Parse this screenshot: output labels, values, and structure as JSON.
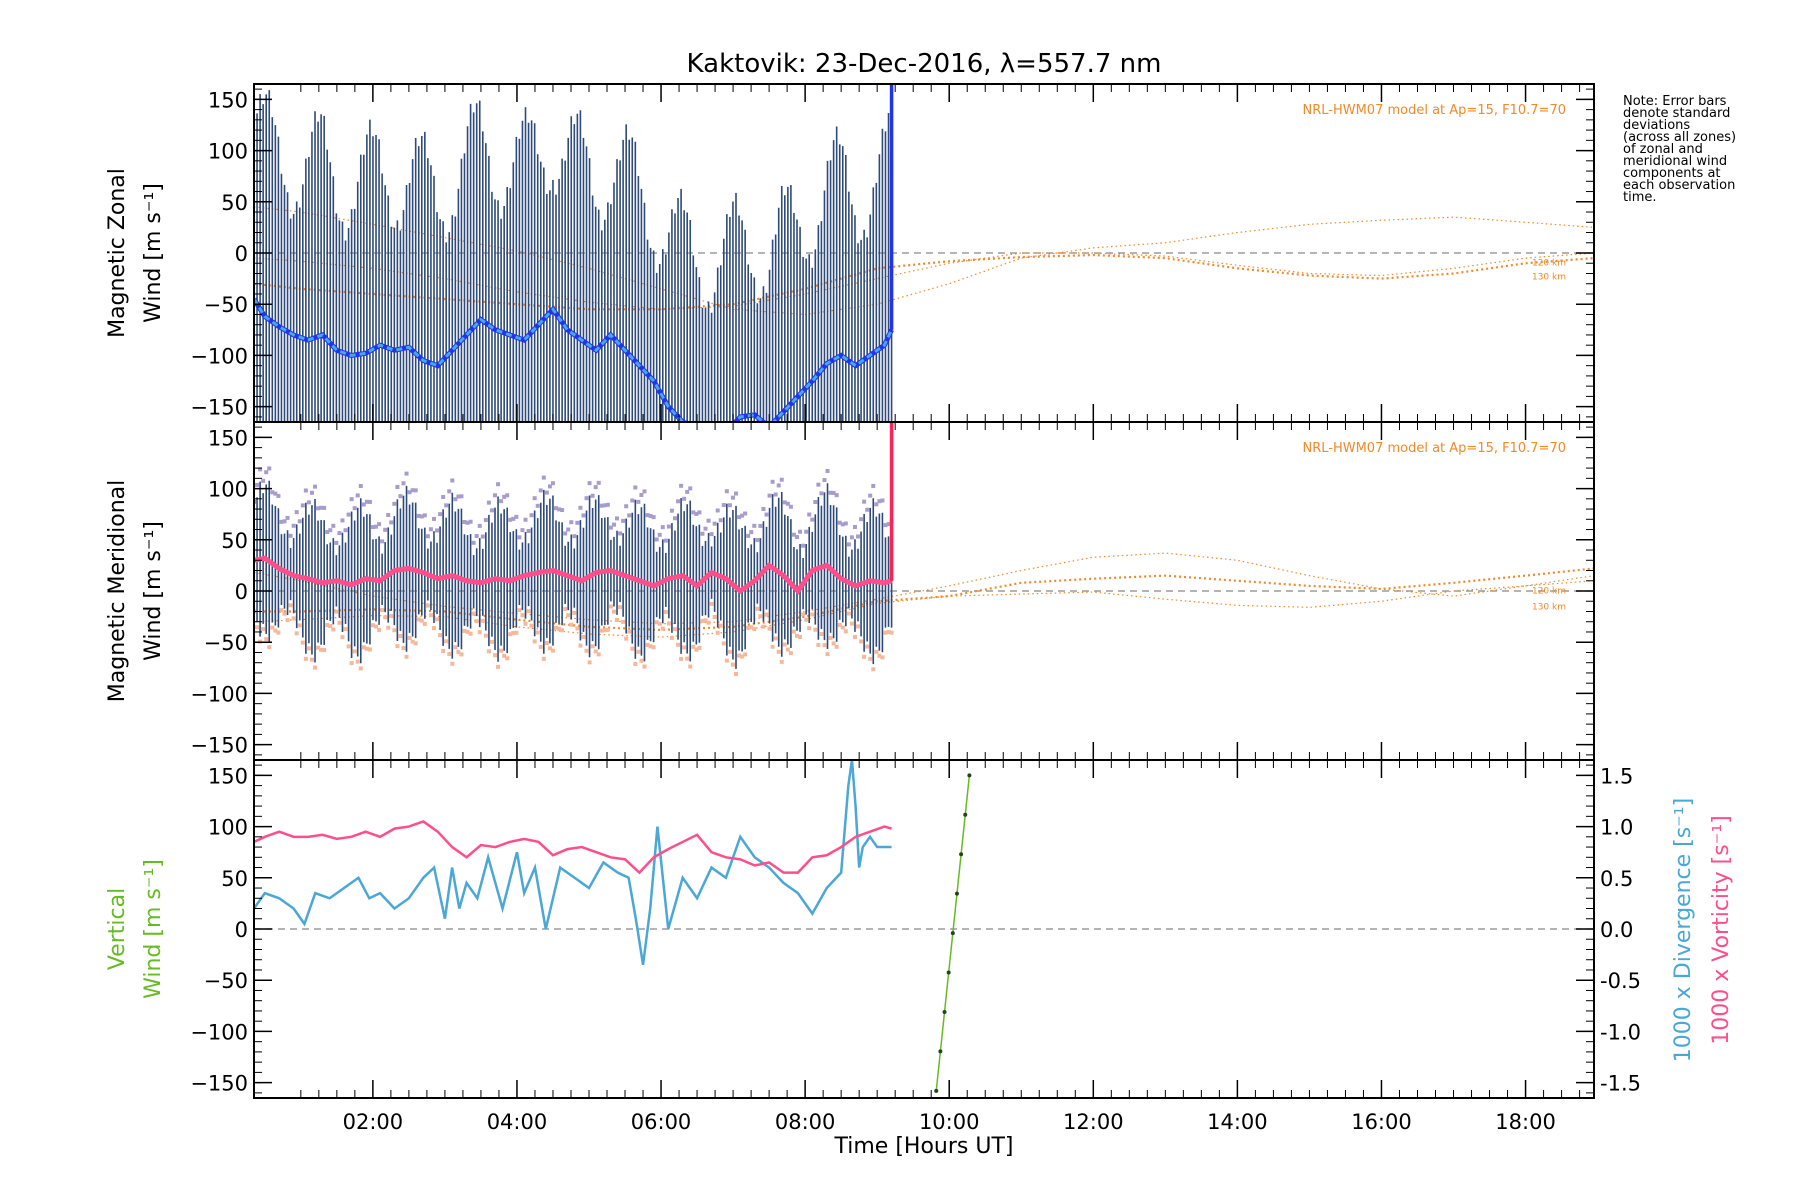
{
  "title": "Kaktovik: 23-Dec-2016, λ=557.7 nm",
  "note_lines": [
    "Note: Error bars",
    "denote standard",
    "deviations",
    "(across all zones)",
    "of zonal and",
    "meridional wind",
    "components at",
    "each observation",
    "time."
  ],
  "colors": {
    "zonal": "#2233ee",
    "zonal_light": "#4aa7e6",
    "meridional": "#ff2255",
    "meridional_mean": "#ff4f8a",
    "errorbar": "#2d4a7a",
    "model": "#f08a2a",
    "vertical": "#66bb22",
    "divergence": "#4aa7d6",
    "vorticity": "#ff4f8a",
    "scatter_purple": "#a89ccc",
    "scatter_peach": "#f7b89a",
    "scatter_yellow": "#eeeeaa",
    "zero_line": "#888888"
  },
  "chart_data": [
    {
      "type": "line",
      "panel": "zonal",
      "ylabel_lines": [
        "Magnetic Zonal",
        "Wind [m s⁻¹]"
      ],
      "ylim": [
        -165,
        165
      ],
      "yticks": [
        -150,
        -100,
        -50,
        0,
        50,
        100,
        150
      ],
      "xlim": [
        0.35,
        18.95
      ],
      "model_label": "NRL-HWM07 model at Ap=15, F10.7=70",
      "model_km_labels": [
        "120 km",
        "130 km"
      ],
      "series": [
        {
          "name": "",
          "x": [
            0.35,
            0.5,
            0.7,
            0.9,
            1.1,
            1.3,
            1.5,
            1.7,
            1.9,
            2.1,
            2.3,
            2.5,
            2.7,
            2.9,
            3.1,
            3.3,
            3.5,
            3.7,
            3.9,
            4.1,
            4.3,
            4.5,
            4.7,
            4.9,
            5.1,
            5.3,
            5.5,
            5.7,
            5.9,
            6.1,
            6.3,
            6.5,
            6.7,
            6.9,
            7.1,
            7.3,
            7.5,
            7.7,
            7.9,
            8.1,
            8.3,
            8.5,
            8.7,
            8.9,
            9.1,
            9.2
          ],
          "y": [
            -45,
            -62,
            -72,
            -80,
            -85,
            -80,
            -95,
            -100,
            -98,
            -90,
            -95,
            -92,
            -105,
            -110,
            -95,
            -80,
            -65,
            -75,
            -80,
            -85,
            -70,
            -55,
            -75,
            -85,
            -95,
            -80,
            -95,
            -110,
            -125,
            -150,
            -165,
            -170,
            -175,
            -175,
            -160,
            -158,
            -170,
            -155,
            -140,
            -125,
            -108,
            -100,
            -110,
            -100,
            -90,
            -75
          ]
        }
      ],
      "model_curves_x": [
        0.35,
        1,
        2,
        3,
        4,
        5,
        6,
        7,
        8,
        9,
        10,
        11,
        12,
        13,
        14,
        15,
        16,
        17,
        18,
        18.95
      ],
      "model_curves": [
        [
          -5,
          -8,
          -15,
          -25,
          -38,
          -48,
          -55,
          -52,
          -40,
          -25,
          -10,
          0,
          0,
          -3,
          -12,
          -20,
          -22,
          -15,
          -5,
          0
        ],
        [
          45,
          40,
          28,
          15,
          2,
          -15,
          -35,
          -55,
          -60,
          -50,
          -30,
          -5,
          5,
          10,
          20,
          28,
          32,
          35,
          30,
          25
        ],
        [
          -30,
          -35,
          -40,
          -45,
          -50,
          -55,
          -55,
          -50,
          -35,
          -15,
          -8,
          -4,
          -2,
          -5,
          -15,
          -22,
          -25,
          -20,
          -10,
          -5
        ]
      ]
    },
    {
      "type": "line",
      "panel": "meridional",
      "ylabel_lines": [
        "Magnetic Meridional",
        "Wind [m s⁻¹]"
      ],
      "ylim": [
        -165,
        165
      ],
      "yticks": [
        -150,
        -100,
        -50,
        0,
        50,
        100,
        150
      ],
      "xlim": [
        0.35,
        18.95
      ],
      "model_label": "NRL-HWM07 model at Ap=15, F10.7=70",
      "model_km_labels": [
        "120 km",
        "130 km"
      ],
      "series": [
        {
          "name": "",
          "x": [
            0.35,
            0.5,
            0.7,
            0.9,
            1.1,
            1.3,
            1.5,
            1.7,
            1.9,
            2.1,
            2.3,
            2.5,
            2.7,
            2.9,
            3.1,
            3.3,
            3.5,
            3.7,
            3.9,
            4.1,
            4.3,
            4.5,
            4.7,
            4.9,
            5.1,
            5.3,
            5.5,
            5.7,
            5.9,
            6.1,
            6.3,
            6.5,
            6.7,
            6.9,
            7.1,
            7.3,
            7.5,
            7.7,
            7.9,
            8.1,
            8.3,
            8.5,
            8.7,
            8.9,
            9.1,
            9.2
          ],
          "y": [
            30,
            32,
            22,
            15,
            12,
            8,
            10,
            6,
            12,
            10,
            20,
            22,
            18,
            12,
            15,
            10,
            8,
            12,
            10,
            15,
            18,
            20,
            15,
            10,
            18,
            20,
            15,
            10,
            5,
            12,
            15,
            5,
            18,
            12,
            0,
            10,
            25,
            15,
            0,
            20,
            25,
            12,
            5,
            10,
            8,
            10
          ]
        }
      ],
      "model_curves_x": [
        0.35,
        1,
        2,
        3,
        4,
        5,
        6,
        7,
        8,
        9,
        10,
        11,
        12,
        13,
        14,
        15,
        16,
        17,
        18,
        18.95
      ],
      "model_curves": [
        [
          -30,
          -28,
          -24,
          -25,
          -35,
          -42,
          -45,
          -40,
          -28,
          -12,
          -5,
          -3,
          -1,
          -8,
          -14,
          -16,
          -10,
          0,
          5,
          10
        ],
        [
          18,
          10,
          -5,
          -15,
          -22,
          -28,
          -32,
          -30,
          -20,
          -8,
          5,
          20,
          33,
          37,
          30,
          15,
          2,
          -5,
          5,
          15
        ],
        [
          -20,
          -20,
          -18,
          -20,
          -28,
          -35,
          -38,
          -35,
          -25,
          -10,
          -5,
          8,
          12,
          15,
          10,
          5,
          2,
          8,
          15,
          22
        ]
      ]
    },
    {
      "type": "line",
      "panel": "vertical",
      "ylabel_lines": [
        "Vertical",
        "Wind [m s⁻¹]"
      ],
      "y2label_divergence": "1000 x Divergence [s⁻¹]",
      "y2label_vorticity": "1000 x Vorticity [s⁻¹]",
      "ylim": [
        -165,
        165
      ],
      "yticks": [
        -150,
        -100,
        -50,
        0,
        50,
        100,
        150
      ],
      "y2lim": [
        -1.65,
        1.65
      ],
      "y2ticks": [
        -1.5,
        -1.0,
        -0.5,
        0.0,
        0.5,
        1.0,
        1.5
      ],
      "y2ticklabels": [
        "-1.5",
        "-1.0",
        "-0.5",
        "0.0",
        "0.5",
        "1.0",
        "1.5"
      ],
      "xlim": [
        0.35,
        18.95
      ],
      "xticks": [
        2,
        4,
        6,
        8,
        10,
        12,
        14,
        16,
        18
      ],
      "xticklabels": [
        "02:00",
        "04:00",
        "06:00",
        "08:00",
        "10:00",
        "12:00",
        "14:00",
        "16:00",
        "18:00"
      ],
      "xlabel": "Time [Hours UT]",
      "series": [
        {
          "name": "vertical",
          "x": [
            9.82,
            10.28
          ],
          "y": [
            -158,
            150
          ]
        },
        {
          "name": "divergence",
          "x": [
            0.35,
            0.5,
            0.7,
            0.9,
            1.05,
            1.2,
            1.4,
            1.6,
            1.8,
            1.95,
            2.1,
            2.3,
            2.5,
            2.7,
            2.85,
            3.0,
            3.1,
            3.2,
            3.3,
            3.45,
            3.6,
            3.8,
            4.0,
            4.1,
            4.25,
            4.4,
            4.6,
            4.8,
            5.0,
            5.2,
            5.4,
            5.55,
            5.65,
            5.75,
            5.85,
            5.95,
            6.1,
            6.3,
            6.5,
            6.7,
            6.9,
            7.1,
            7.3,
            7.5,
            7.7,
            7.9,
            8.1,
            8.3,
            8.5,
            8.6,
            8.65,
            8.7,
            8.75,
            8.8,
            8.9,
            9.0,
            9.2
          ],
          "y": [
            0.2,
            0.35,
            0.3,
            0.2,
            0.05,
            0.35,
            0.3,
            0.4,
            0.5,
            0.3,
            0.35,
            0.2,
            0.3,
            0.5,
            0.6,
            0.1,
            0.6,
            0.2,
            0.45,
            0.3,
            0.7,
            0.2,
            0.75,
            0.35,
            0.6,
            0.0,
            0.6,
            0.5,
            0.4,
            0.65,
            0.55,
            0.5,
            0.1,
            -0.35,
            0.2,
            1.0,
            0.0,
            0.5,
            0.3,
            0.6,
            0.5,
            0.9,
            0.7,
            0.6,
            0.45,
            0.35,
            0.15,
            0.4,
            0.55,
            1.4,
            1.65,
            1.2,
            0.6,
            0.8,
            0.9,
            0.8,
            0.8
          ]
        },
        {
          "name": "vorticity",
          "x": [
            0.35,
            0.5,
            0.7,
            0.9,
            1.1,
            1.3,
            1.5,
            1.7,
            1.9,
            2.1,
            2.3,
            2.5,
            2.7,
            2.9,
            3.1,
            3.3,
            3.5,
            3.7,
            3.9,
            4.1,
            4.3,
            4.5,
            4.7,
            4.9,
            5.1,
            5.3,
            5.5,
            5.7,
            5.9,
            6.1,
            6.3,
            6.5,
            6.7,
            6.9,
            7.1,
            7.3,
            7.5,
            7.7,
            7.9,
            8.1,
            8.3,
            8.5,
            8.7,
            8.9,
            9.1,
            9.2
          ],
          "y": [
            0.85,
            0.9,
            0.95,
            0.9,
            0.9,
            0.92,
            0.88,
            0.9,
            0.95,
            0.9,
            0.98,
            1.0,
            1.05,
            0.95,
            0.8,
            0.7,
            0.82,
            0.8,
            0.85,
            0.88,
            0.85,
            0.72,
            0.78,
            0.8,
            0.75,
            0.7,
            0.68,
            0.55,
            0.7,
            0.78,
            0.85,
            0.92,
            0.75,
            0.7,
            0.68,
            0.62,
            0.65,
            0.55,
            0.55,
            0.7,
            0.72,
            0.8,
            0.9,
            0.95,
            1.0,
            0.98
          ]
        }
      ]
    }
  ]
}
